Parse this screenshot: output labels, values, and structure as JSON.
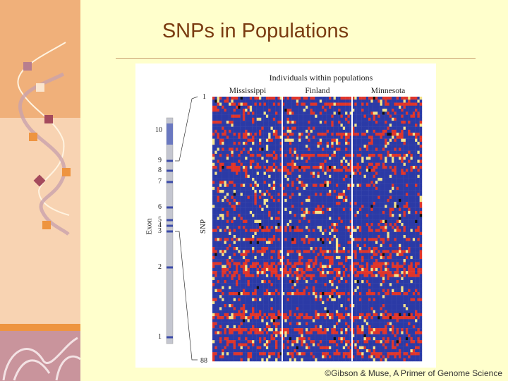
{
  "slide": {
    "title": "SNPs in Populations",
    "credit": "©Gibson & Muse,  A Primer of Genome Science"
  },
  "figure": {
    "title": "Individuals within populations",
    "populations": [
      "Mississippi",
      "Finland",
      "Minnesota"
    ],
    "exon_axis_label": "Exon",
    "snp_axis_label": "SNP",
    "snp_start": "1",
    "snp_end": "88",
    "exons": [
      "10",
      "9",
      "8",
      "7",
      "6",
      "5",
      "4",
      "3",
      "2",
      "1"
    ],
    "colors": {
      "blue": "#2b3aa6",
      "red": "#e0352a",
      "yellow": "#f2e28a",
      "black": "#111111"
    }
  }
}
